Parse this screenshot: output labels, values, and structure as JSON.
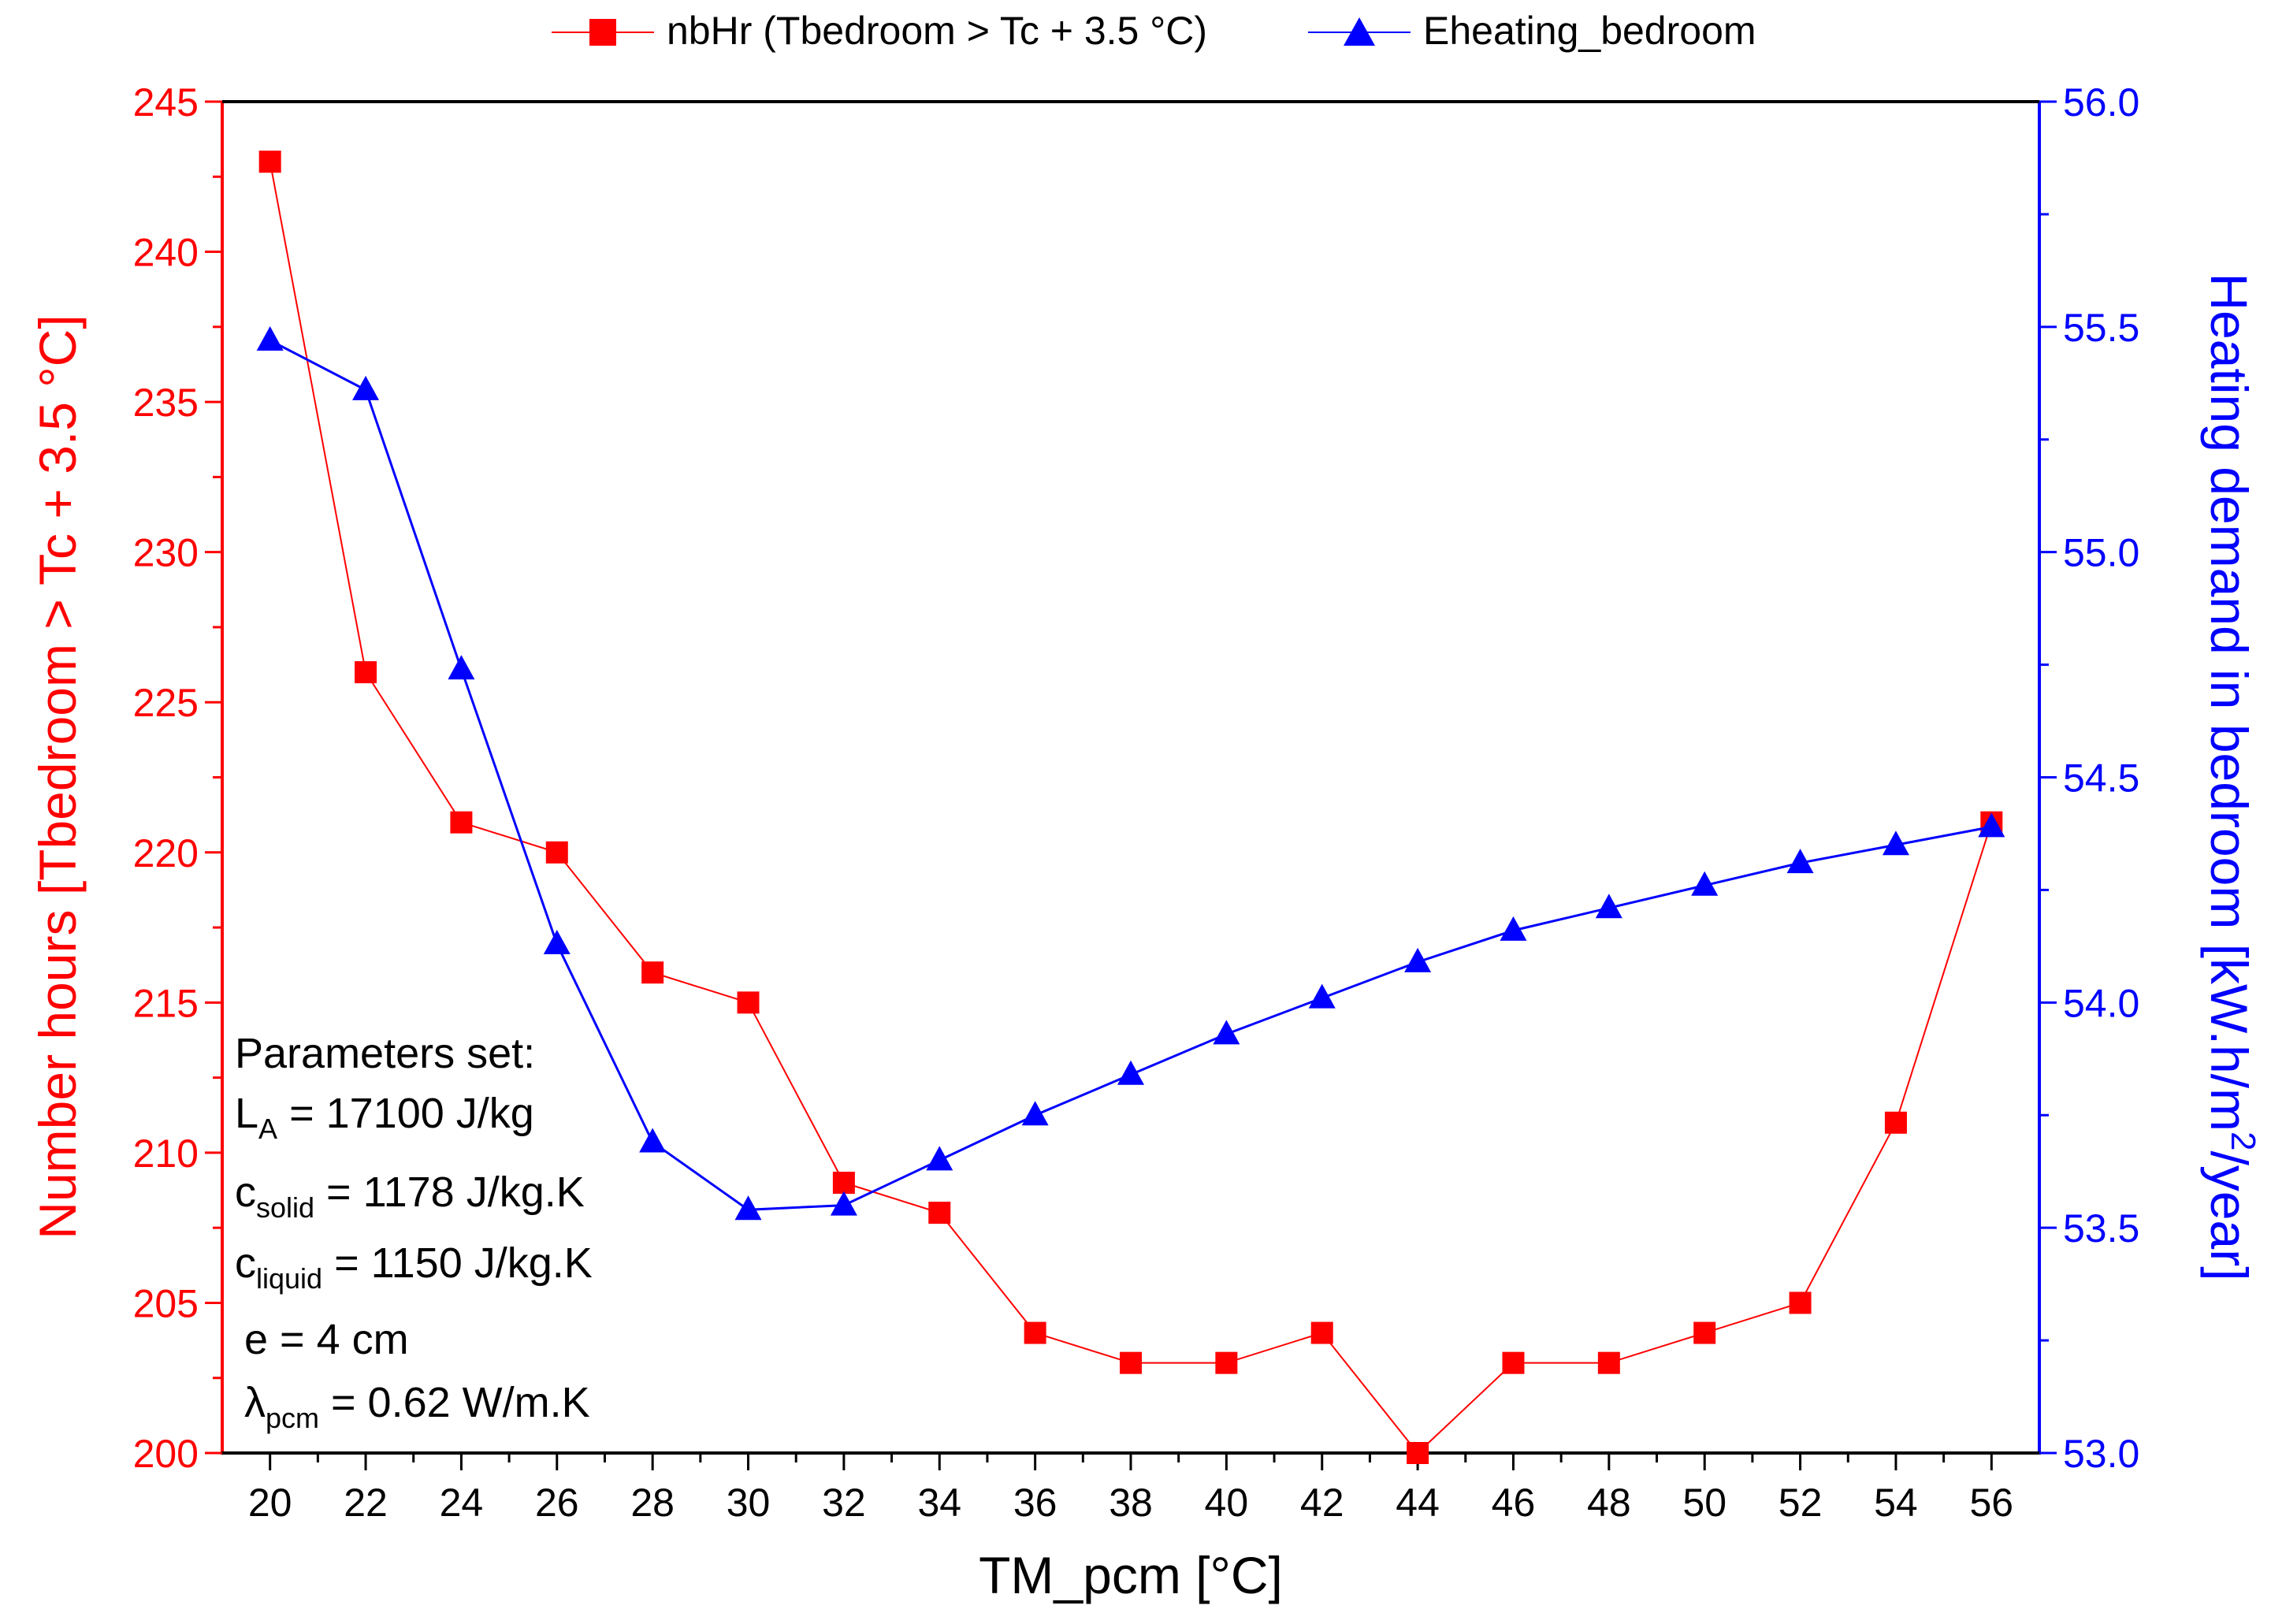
{
  "chart_data": {
    "type": "line",
    "xlabel": "TM_pcm [°C]",
    "x": [
      20,
      22,
      24,
      26,
      28,
      30,
      32,
      34,
      36,
      38,
      40,
      42,
      44,
      46,
      48,
      50,
      52,
      54,
      56
    ],
    "xlim": [
      19,
      57
    ],
    "xticks": [
      "20",
      "22",
      "24",
      "26",
      "28",
      "30",
      "32",
      "34",
      "36",
      "38",
      "40",
      "42",
      "44",
      "46",
      "48",
      "50",
      "52",
      "54",
      "56"
    ],
    "y_left": {
      "label": "Number hours [Tbedroom > Tc + 3.5 °C]",
      "ylim": [
        200,
        245
      ],
      "ticks": [
        "200",
        "205",
        "210",
        "215",
        "220",
        "225",
        "230",
        "235",
        "240",
        "245"
      ],
      "color": "#ff0000"
    },
    "y_right": {
      "label_main": "Heating demand in bedroom [kW.h/m",
      "label_sup": "2",
      "label_end": "/year]",
      "ylim": [
        53.0,
        56.0
      ],
      "ticks": [
        "53.0",
        "53.5",
        "54.0",
        "54.5",
        "55.0",
        "55.5",
        "56.0"
      ],
      "color": "#0000ff"
    },
    "series": [
      {
        "name": "nbHr (Tbedroom > Tc + 3.5 °C)",
        "axis": "left",
        "marker": "square",
        "color": "#ff0000",
        "values": [
          243,
          226,
          221,
          220,
          216,
          215,
          209,
          208,
          204,
          203,
          203,
          204,
          200,
          203,
          203,
          204,
          205,
          211,
          221
        ]
      },
      {
        "name": "Eheating_bedroom",
        "axis": "right",
        "marker": "triangle",
        "color": "#0000ff",
        "values": [
          55.47,
          55.36,
          54.74,
          54.13,
          53.69,
          53.54,
          53.55,
          53.65,
          53.75,
          53.84,
          53.93,
          54.01,
          54.09,
          54.16,
          54.21,
          54.26,
          54.31,
          54.35,
          54.39
        ]
      }
    ],
    "legend_position": "top-center",
    "annotation": {
      "title": "Parameters set:",
      "lines": [
        {
          "main": "L",
          "sub": "A",
          "rest": " = 17100 J/kg"
        },
        {
          "main": "c",
          "sub": "solid",
          "rest": " = 1178 J/kg.K"
        },
        {
          "main": "c",
          "sub": "liquid",
          "rest": " = 1150 J/kg.K"
        },
        {
          "main": "e = 4 cm",
          "sub": "",
          "rest": ""
        },
        {
          "main": "λ",
          "sub": "pcm",
          "rest": " = 0.62 W/m.K"
        }
      ]
    }
  }
}
